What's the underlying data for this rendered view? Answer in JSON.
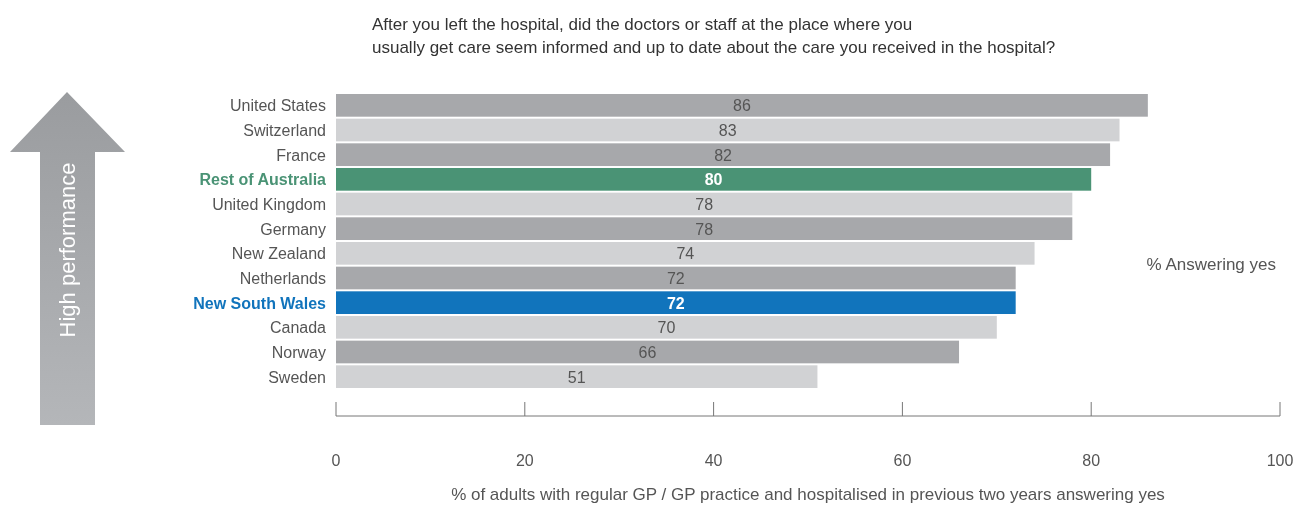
{
  "chart_data": {
    "type": "bar",
    "orientation": "horizontal",
    "title": "After you left the hospital, did the doctors or staff at the place where you usually get care seem informed and up to date about the care you received in the hospital?",
    "categories": [
      "United States",
      "Switzerland",
      "France",
      "Rest of Australia",
      "United Kingdom",
      "Germany",
      "New Zealand",
      "Netherlands",
      "New South Wales",
      "Canada",
      "Norway",
      "Sweden"
    ],
    "values": [
      86,
      83,
      82,
      80,
      78,
      78,
      74,
      72,
      72,
      70,
      66,
      51
    ],
    "colors": [
      "#a7a8ab",
      "#d1d2d4",
      "#a7a8ab",
      "#4a9375",
      "#d1d2d4",
      "#a7a8ab",
      "#d1d2d4",
      "#a7a8ab",
      "#1174bc",
      "#d1d2d4",
      "#a7a8ab",
      "#d1d2d4"
    ],
    "xlim": [
      0,
      100
    ],
    "xticks": [
      0,
      20,
      40,
      60,
      80,
      100
    ],
    "data_labels": true,
    "xlabel": "% of adults with regular GP / GP practice and hospitalised in previous two years answering yes",
    "annotations": [
      "% Answering yes",
      "High performance"
    ]
  }
}
